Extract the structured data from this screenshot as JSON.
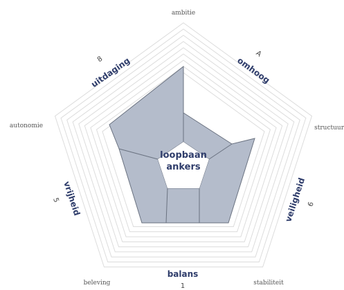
{
  "diagram": {
    "center": [
      "loopbaan",
      "ankers"
    ],
    "vertices": [
      "ambitie",
      "structuur",
      "stabiliteit",
      "beleving",
      "autonomie"
    ],
    "segments": [
      {
        "label": "uitdaging",
        "code": "8"
      },
      {
        "label": "omhoog",
        "code": "A"
      },
      {
        "label": "veiligheid",
        "code": "6"
      },
      {
        "label": "balans",
        "code": "1"
      },
      {
        "label": "vrijheid",
        "code": "5"
      }
    ]
  }
}
